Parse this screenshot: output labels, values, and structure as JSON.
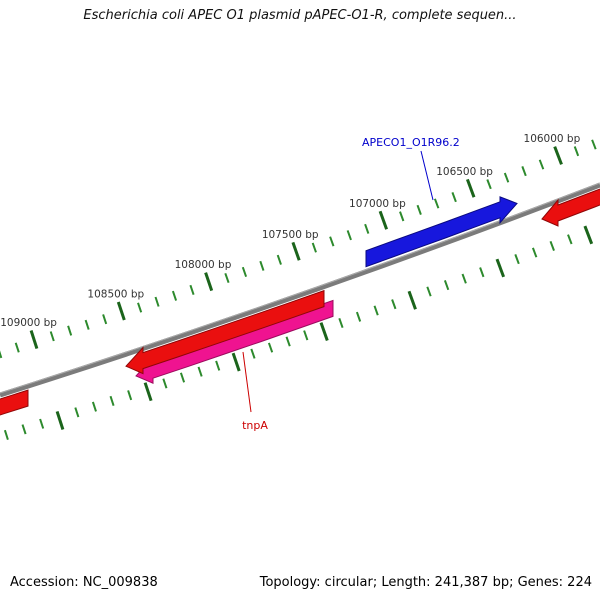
{
  "title": "Escherichia coli APEC O1 plasmid pAPEC-O1-R, complete sequen...",
  "status_bar": {
    "accession": "Accession: NC_009838",
    "summary": "Topology: circular; Length: 241,387 bp; Genes: 224"
  },
  "ruler": {
    "unit": "bp",
    "labels": [
      {
        "bp": 109000,
        "text": "109000 bp"
      },
      {
        "bp": 108500,
        "text": "108500 bp"
      },
      {
        "bp": 108000,
        "text": "108000 bp"
      },
      {
        "bp": 107500,
        "text": "107500 bp"
      },
      {
        "bp": 107000,
        "text": "107000 bp"
      },
      {
        "bp": 106500,
        "text": "106500 bp"
      },
      {
        "bp": 106000,
        "text": "106000 bp"
      }
    ]
  },
  "genes": {
    "blue": {
      "label": "APECO1_O1R96.2"
    },
    "tnpa": {
      "label": "tnpA"
    }
  },
  "colors": {
    "backbone": "#7b7b7b",
    "backbone_highlight": "#aaaaaa",
    "tick_minor": "#2d8a2d",
    "tick_major": "#1b641b",
    "gene_blue": "#1717dd",
    "gene_red": "#ea0f0f",
    "gene_magenta": "#ef1390",
    "label_blue": "#0000cc",
    "label_red": "#cc0000"
  }
}
